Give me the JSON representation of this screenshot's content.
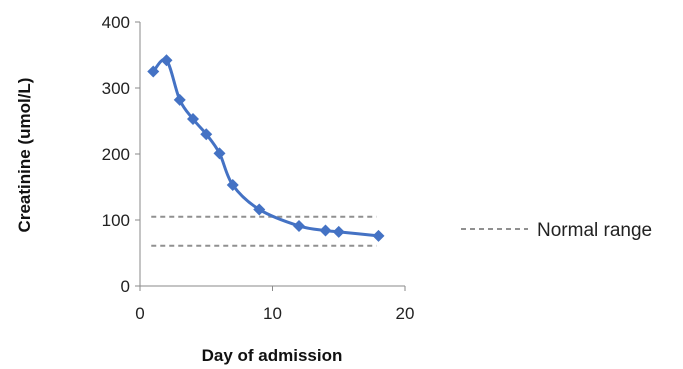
{
  "chart_data": {
    "type": "line",
    "xlabel": "Day of admission",
    "ylabel": "Creatinine (umol/L)",
    "xlim": [
      0,
      20
    ],
    "ylim": [
      0,
      400
    ],
    "xticks": [
      0,
      10,
      20
    ],
    "yticks": [
      0,
      100,
      200,
      300,
      400
    ],
    "grid": false,
    "legend": "right",
    "series": [
      {
        "type": "line",
        "marker": "diamond",
        "color": "#4472C4",
        "x": [
          1,
          2,
          3,
          4,
          5,
          6,
          7,
          9,
          12,
          14,
          15,
          18
        ],
        "y": [
          325,
          342,
          282,
          253,
          230,
          201,
          153,
          116,
          91,
          84,
          82,
          76
        ]
      }
    ],
    "reference_lines": [
      {
        "name": "Normal range",
        "style": "dashed",
        "color": "#909090",
        "y": 105,
        "x_from": 1,
        "x_to": 18
      },
      {
        "name": "Normal range",
        "style": "dashed",
        "color": "#909090",
        "y": 61,
        "x_from": 1,
        "x_to": 18
      }
    ],
    "legend_entries": [
      {
        "label": "Normal range",
        "style": "dashed",
        "color": "#909090"
      }
    ]
  }
}
